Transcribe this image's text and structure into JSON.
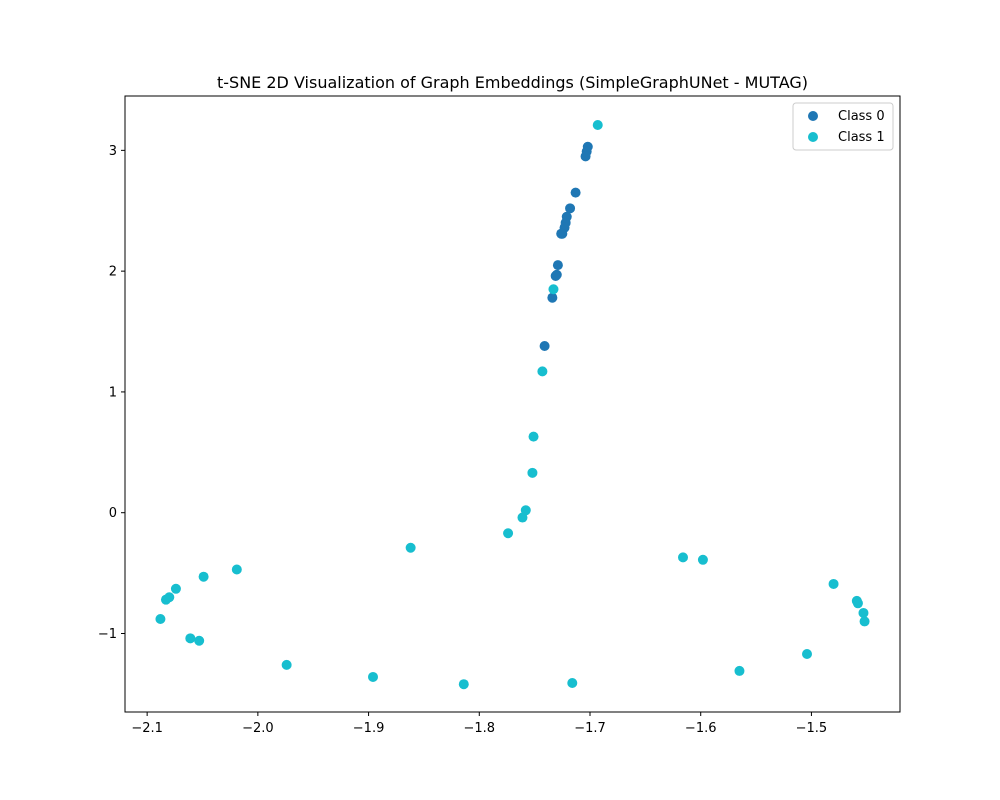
{
  "chart_data": {
    "type": "scatter",
    "title": "t-SNE 2D Visualization of Graph Embeddings (SimpleGraphUNet - MUTAG)",
    "xlabel": "",
    "ylabel": "",
    "xlim": [
      -2.12,
      -1.42
    ],
    "ylim": [
      -1.65,
      3.45
    ],
    "x_ticks": [
      -2.1,
      -2.0,
      -1.9,
      -1.8,
      -1.7,
      -1.6,
      -1.5
    ],
    "x_tick_labels": [
      "−2.1",
      "−2.0",
      "−1.9",
      "−1.8",
      "−1.7",
      "−1.6",
      "−1.5"
    ],
    "y_ticks": [
      -1,
      0,
      1,
      2,
      3
    ],
    "y_tick_labels": [
      "−1",
      "0",
      "1",
      "2",
      "3"
    ],
    "grid": false,
    "legend_position": "top-right",
    "series": [
      {
        "name": "Class 0",
        "color": "#1f77b4",
        "points": [
          [
            -1.702,
            3.03
          ],
          [
            -1.703,
            2.99
          ],
          [
            -1.704,
            2.95
          ],
          [
            -1.713,
            2.65
          ],
          [
            -1.718,
            2.52
          ],
          [
            -1.721,
            2.45
          ],
          [
            -1.722,
            2.4
          ],
          [
            -1.723,
            2.36
          ],
          [
            -1.725,
            2.31
          ],
          [
            -1.726,
            2.31
          ],
          [
            -1.729,
            2.05
          ],
          [
            -1.73,
            1.97
          ],
          [
            -1.731,
            1.96
          ],
          [
            -1.734,
            1.78
          ],
          [
            -1.741,
            1.38
          ]
        ]
      },
      {
        "name": "Class 1",
        "color": "#17becf",
        "points": [
          [
            -1.693,
            3.21
          ],
          [
            -1.733,
            1.85
          ],
          [
            -1.743,
            1.17
          ],
          [
            -1.751,
            0.63
          ],
          [
            -1.752,
            0.33
          ],
          [
            -1.758,
            0.02
          ],
          [
            -1.761,
            -0.04
          ],
          [
            -1.774,
            -0.17
          ],
          [
            -1.862,
            -0.29
          ],
          [
            -2.019,
            -0.47
          ],
          [
            -2.049,
            -0.53
          ],
          [
            -2.074,
            -0.63
          ],
          [
            -2.08,
            -0.7
          ],
          [
            -2.083,
            -0.72
          ],
          [
            -2.088,
            -0.88
          ],
          [
            -2.061,
            -1.04
          ],
          [
            -2.053,
            -1.06
          ],
          [
            -1.974,
            -1.26
          ],
          [
            -1.896,
            -1.36
          ],
          [
            -1.814,
            -1.42
          ],
          [
            -1.716,
            -1.41
          ],
          [
            -1.565,
            -1.31
          ],
          [
            -1.504,
            -1.17
          ],
          [
            -1.616,
            -0.37
          ],
          [
            -1.598,
            -0.39
          ],
          [
            -1.48,
            -0.59
          ],
          [
            -1.459,
            -0.73
          ],
          [
            -1.458,
            -0.75
          ],
          [
            -1.453,
            -0.83
          ],
          [
            -1.452,
            -0.9
          ]
        ]
      }
    ]
  }
}
